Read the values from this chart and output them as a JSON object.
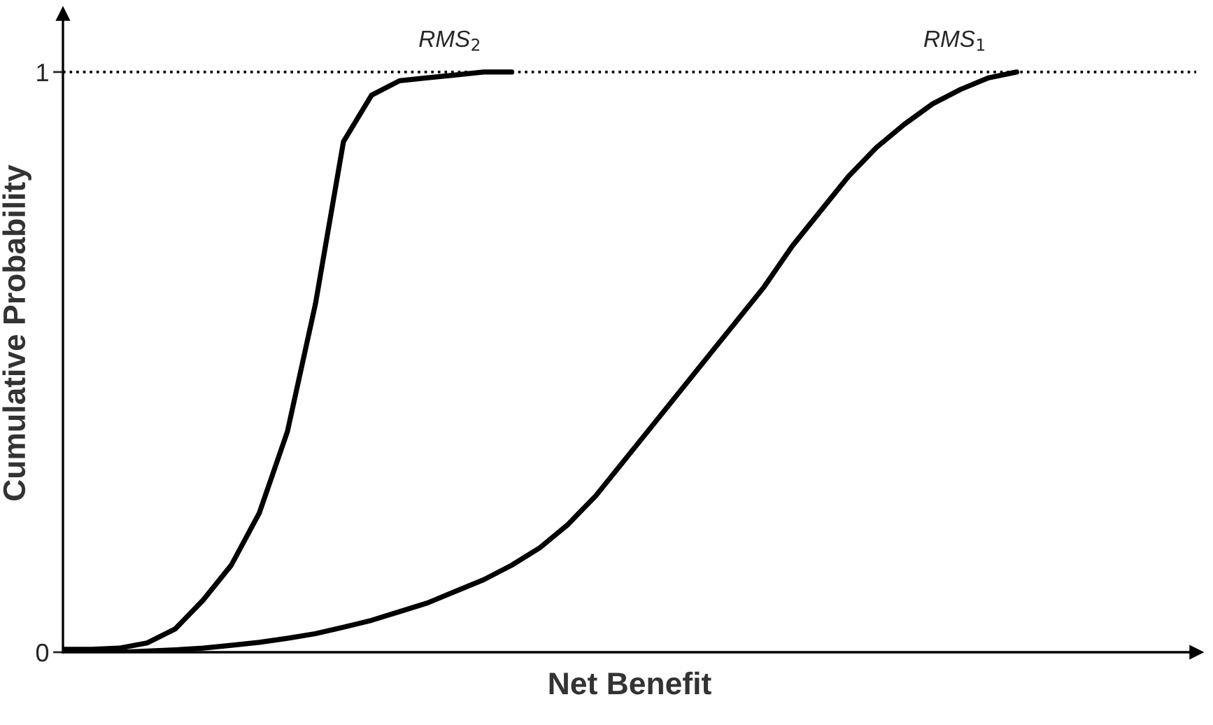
{
  "chart_data": {
    "type": "line",
    "xlabel": "Net Benefit",
    "ylabel": "Cumulative Probability",
    "categories": [
      null,
      null,
      null,
      null,
      null,
      null,
      null,
      null,
      null,
      null,
      null,
      null,
      null,
      null,
      null,
      null,
      null,
      null,
      null,
      null,
      null,
      null,
      null,
      null,
      null,
      null,
      null,
      null,
      null,
      null,
      null,
      null,
      null,
      null,
      null,
      null,
      null,
      null,
      null,
      null,
      null
    ],
    "series": [
      {
        "name": "RMS$_{2}$",
        "color": "#000000",
        "values": [
          0.005,
          0.005,
          0.007,
          0.016,
          0.04,
          0.09,
          0.15,
          0.24,
          0.38,
          0.6,
          0.88,
          0.96,
          0.985,
          0.99,
          0.995,
          1,
          1,
          null,
          null,
          null,
          null,
          null,
          null,
          null,
          null,
          null,
          null,
          null,
          null,
          null,
          null,
          null,
          null,
          null,
          null,
          null,
          null,
          null,
          null,
          null,
          null
        ]
      },
      {
        "name": "RMS$_{1}$",
        "color": "#000000",
        "values": [
          0,
          0,
          0,
          0.002,
          0.004,
          0.007,
          0.012,
          0.017,
          0.024,
          0.032,
          0.043,
          0.055,
          0.07,
          0.085,
          0.105,
          0.125,
          0.15,
          0.18,
          0.22,
          0.27,
          0.33,
          0.39,
          0.45,
          0.51,
          0.57,
          0.63,
          0.7,
          0.76,
          0.82,
          0.87,
          0.91,
          0.945,
          0.97,
          0.99,
          1,
          null,
          null,
          null,
          null,
          null,
          null
        ]
      }
    ],
    "ylim": [
      0,
      1.1
    ],
    "yticks": [
      0,
      1
    ],
    "ref_lines": [
      {
        "axis": "y",
        "value": 1,
        "line_style": "dotted",
        "color": "#000000"
      }
    ],
    "grid": false,
    "legend": false,
    "marker": "none",
    "line_style": "solid",
    "tick_labels": "y"
  }
}
